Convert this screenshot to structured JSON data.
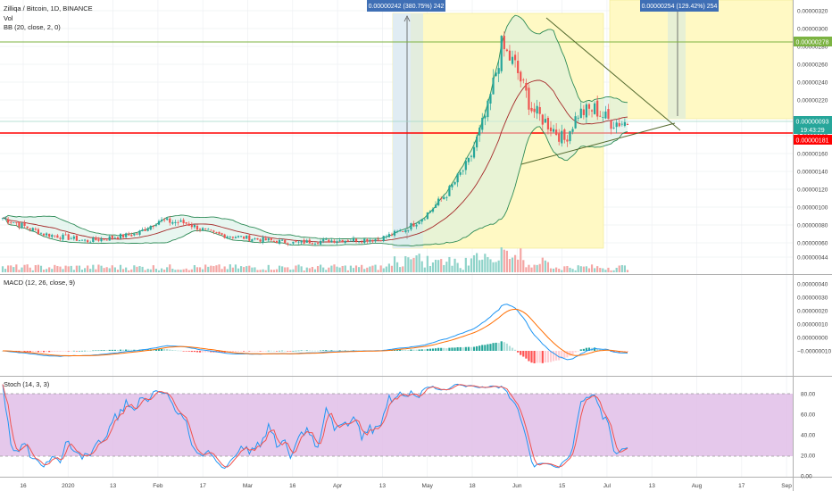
{
  "header": {
    "title": "Zilliqa / Bitcoin, 1D, BINANCE",
    "vol_label": "Vol",
    "bb_label": "BB (20, close, 2, 0)",
    "macd_label": "MACD (12, 26, close, 9)",
    "stoch_label": "Stoch (14, 3, 3)"
  },
  "measure_boxes": [
    {
      "label": "0.00000242 (380.75%) 242"
    },
    {
      "label": "0.00000254 (129.42%) 254"
    }
  ],
  "price_tags": {
    "green_line": "0.00000278",
    "current": "0.00000093",
    "countdown": "19:43:29",
    "red_line": "0.00000181"
  },
  "price_axis": [
    "0.00000320",
    "0.00000300",
    "0.00000280",
    "0.00000260",
    "0.00000240",
    "0.00000220",
    "0.00000200",
    "0.00000180",
    "0.00000160",
    "0.00000140",
    "0.00000120",
    "0.00000100",
    "0.00000080",
    "0.00000060",
    "0.00000044"
  ],
  "macd_axis": [
    "0.00000040",
    "0.00000030",
    "0.00000020",
    "0.00000010",
    "0.00000000",
    "−0.00000010"
  ],
  "stoch_axis": [
    "80.00",
    "60.00",
    "40.00",
    "20.00",
    "0.00"
  ],
  "time_axis": [
    "16",
    "2020",
    "13",
    "Feb",
    "17",
    "Mar",
    "16",
    "Apr",
    "13",
    "May",
    "18",
    "Jun",
    "15",
    "Jul",
    "13",
    "Aug",
    "17",
    "Sep"
  ],
  "colors": {
    "up": "#26a69a",
    "down": "#ef5350",
    "bb": "#2e8b57",
    "basis": "#a52a2a",
    "macd": "#2196f3",
    "signal": "#ff6d00",
    "stoch_k": "#2196f3",
    "stoch_d": "#ef5350",
    "stoch_band": "#e1bee7",
    "measure_fill": "#fff9c4",
    "measure_label": "#3f6fb5",
    "resistance": "#ff0000",
    "support_green": "#7cb342"
  },
  "chart_data": {
    "type": "candlestick",
    "symbol": "Zilliqa / Bitcoin",
    "interval": "1D",
    "exchange": "BINANCE",
    "x_start": "2019-12-10",
    "x_labels": [
      "16",
      "2020",
      "13",
      "Feb",
      "17",
      "Mar",
      "16",
      "Apr",
      "13",
      "May",
      "18",
      "Jun",
      "15",
      "Jul",
      "13",
      "Aug",
      "17",
      "Sep"
    ],
    "ylim": [
      3.8e-07,
      3.22e-06
    ],
    "indicators": [
      "Vol",
      "BB (20, close, 2, 0)",
      "MACD (12, 26, close, 9)",
      "Stoch (14, 3, 3)"
    ],
    "horizontal_lines": [
      2.78e-06,
      1.81e-06
    ],
    "close_series_anchors": [
      {
        "date": "2019-12-10",
        "close": 8.8e-07
      },
      {
        "date": "2019-12-25",
        "close": 7e-07
      },
      {
        "date": "2020-01-10",
        "close": 6.2e-07
      },
      {
        "date": "2020-01-28",
        "close": 7e-07
      },
      {
        "date": "2020-02-05",
        "close": 8.5e-07
      },
      {
        "date": "2020-02-15",
        "close": 8.2e-07
      },
      {
        "date": "2020-02-25",
        "close": 7e-07
      },
      {
        "date": "2020-03-12",
        "close": 6.4e-07
      },
      {
        "date": "2020-03-25",
        "close": 6e-07
      },
      {
        "date": "2020-04-10",
        "close": 6.3e-07
      },
      {
        "date": "2020-04-25",
        "close": 6.4e-07
      },
      {
        "date": "2020-05-05",
        "close": 7.5e-07
      },
      {
        "date": "2020-05-12",
        "close": 9e-07
      },
      {
        "date": "2020-05-20",
        "close": 1.15e-06
      },
      {
        "date": "2020-05-28",
        "close": 1.5e-06
      },
      {
        "date": "2020-06-04",
        "close": 2.1e-06
      },
      {
        "date": "2020-06-09",
        "close": 2.8e-06
      },
      {
        "date": "2020-06-14",
        "close": 2.58e-06
      },
      {
        "date": "2020-06-20",
        "close": 2.1e-06
      },
      {
        "date": "2020-06-27",
        "close": 1.9e-06
      },
      {
        "date": "2020-07-02",
        "close": 1.75e-06
      },
      {
        "date": "2020-07-07",
        "close": 2.05e-06
      },
      {
        "date": "2020-07-13",
        "close": 2.1e-06
      },
      {
        "date": "2020-07-19",
        "close": 1.95e-06
      },
      {
        "date": "2020-07-25",
        "close": 1.95e-06
      }
    ]
  }
}
